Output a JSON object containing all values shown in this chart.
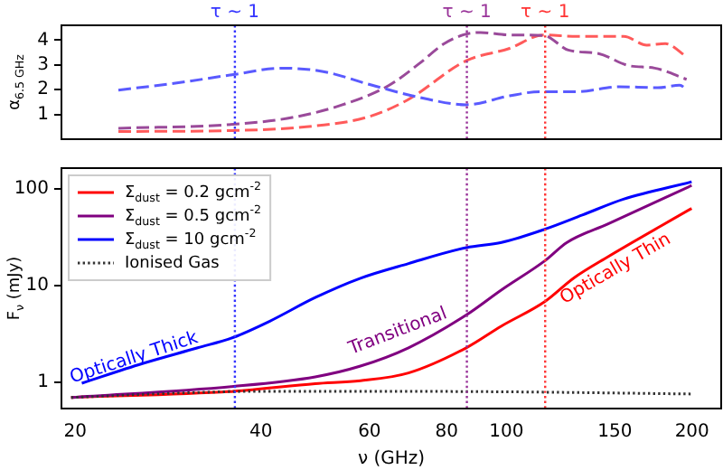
{
  "chart_data": [
    {
      "type": "line",
      "ylabel": "α$_{6.5 GHz}$",
      "xlim": [
        19,
        223
      ],
      "xticks": [
        20,
        40,
        60,
        80,
        100,
        150,
        200
      ],
      "ylim": [
        0,
        4.6
      ],
      "yticks": [
        1,
        2,
        3,
        4
      ],
      "log": "x",
      "tick_labels": "y",
      "grid": false,
      "legend": false,
      "line_style": "dashed",
      "series": [
        {
          "color": "#ff5a5a",
          "x": [
            23.5,
            36.1,
            47.4,
            59.5,
            69.1,
            86.1,
            101,
            115,
            130,
            141,
            155,
            169,
            181,
            196
          ],
          "values": [
            0.31,
            0.35,
            0.5,
            0.89,
            1.58,
            3.17,
            3.66,
            4.21,
            4.15,
            4.15,
            4.15,
            3.8,
            3.86,
            3.33
          ]
        },
        {
          "color": "#9a4a9a",
          "x": [
            23.5,
            36.1,
            45.3,
            54.1,
            64.5,
            72.3,
            79.2,
            86.1,
            90.9,
            101,
            115,
            126,
            141,
            158,
            174,
            196
          ],
          "values": [
            0.44,
            0.6,
            0.89,
            1.38,
            2.17,
            3.06,
            3.85,
            4.25,
            4.31,
            4.21,
            4.19,
            3.6,
            3.46,
            2.97,
            2.87,
            2.42
          ]
        },
        {
          "color": "#5a5aff",
          "x": [
            23.5,
            29.4,
            36.1,
            43.2,
            50.5,
            60.6,
            72.3,
            86.1,
            101.2,
            113.5,
            130,
            152.4,
            176,
            191,
            196
          ],
          "values": [
            1.98,
            2.28,
            2.61,
            2.87,
            2.73,
            2.18,
            1.69,
            1.39,
            1.75,
            1.92,
            1.92,
            2.12,
            2.08,
            2.18,
            2.02
          ]
        }
      ],
      "ref_lines": [
        {
          "axis": "x",
          "value": 36.3,
          "label": "τ ~ 1",
          "color": "#3333ff",
          "line_style": "dotted"
        },
        {
          "axis": "x",
          "value": 86.3,
          "label": "τ ~ 1",
          "color": "#993399",
          "line_style": "dotted"
        },
        {
          "axis": "x",
          "value": 115.6,
          "label": "τ ~ 1",
          "color": "#ff3333",
          "line_style": "dotted"
        }
      ]
    },
    {
      "type": "line",
      "xlabel": "ν (GHz)",
      "ylabel": "F$_{ν}$ (mJy)",
      "xlim": [
        19,
        223
      ],
      "xticks": [
        20,
        40,
        60,
        80,
        100,
        150,
        200
      ],
      "ylim": [
        0.53,
        165
      ],
      "yticks": [
        1,
        10,
        100
      ],
      "log": "xy",
      "grid": false,
      "legend": "top left",
      "series": [
        {
          "name": "Σ$_{dust}$ = 0.2 gcm$^{-2}$",
          "color": "#ff0000",
          "line_style": "solid",
          "x": [
            19.7,
            36.1,
            49,
            58,
            69.4,
            86.1,
            98.2,
            115.4,
            128.7,
            146,
            199.7
          ],
          "values": [
            0.69,
            0.8,
            0.96,
            1.03,
            1.24,
            2.26,
            3.8,
            6.8,
            12,
            19.8,
            63
          ]
        },
        {
          "name": "Σ$_{dust}$ = 0.5 gcm$^{-2}$",
          "color": "#800080",
          "line_style": "solid",
          "x": [
            19.7,
            36.1,
            49,
            58,
            69.4,
            86.1,
            98.2,
            115.4,
            125.4,
            146,
            199.7
          ],
          "values": [
            0.69,
            0.9,
            1.13,
            1.46,
            2.26,
            4.94,
            9,
            18,
            28,
            43.5,
            109
          ]
        },
        {
          "name": "Σ$_{dust}$ = 10 gcm$^{-2}$",
          "color": "#0000ff",
          "line_style": "solid",
          "x": [
            20.5,
            25.7,
            31.6,
            36.1,
            41.3,
            49,
            58,
            69.4,
            86.1,
            98.2,
            115.4,
            132.8,
            154.8,
            199.7
          ],
          "values": [
            0.97,
            1.55,
            2.26,
            2.9,
            4.25,
            7.5,
            11.9,
            16.9,
            24.7,
            28,
            38.3,
            53.8,
            78.6,
            119
          ]
        },
        {
          "name": "Ionised Gas",
          "color": "#333333",
          "line_style": "dotted",
          "x": [
            19.7,
            30,
            40,
            60,
            100,
            199.7
          ],
          "values": [
            0.69,
            0.77,
            0.8,
            0.8,
            0.79,
            0.75
          ]
        }
      ],
      "ref_lines": [
        {
          "axis": "x",
          "value": 36.3,
          "color": "#3333ff",
          "line_style": "dotted"
        },
        {
          "axis": "x",
          "value": 86.3,
          "color": "#993399",
          "line_style": "dotted"
        },
        {
          "axis": "x",
          "value": 115.6,
          "color": "#ff3333",
          "line_style": "dotted"
        }
      ],
      "annotations": [
        "Optically Thin",
        "Transitional",
        "Optically Thick"
      ]
    }
  ]
}
